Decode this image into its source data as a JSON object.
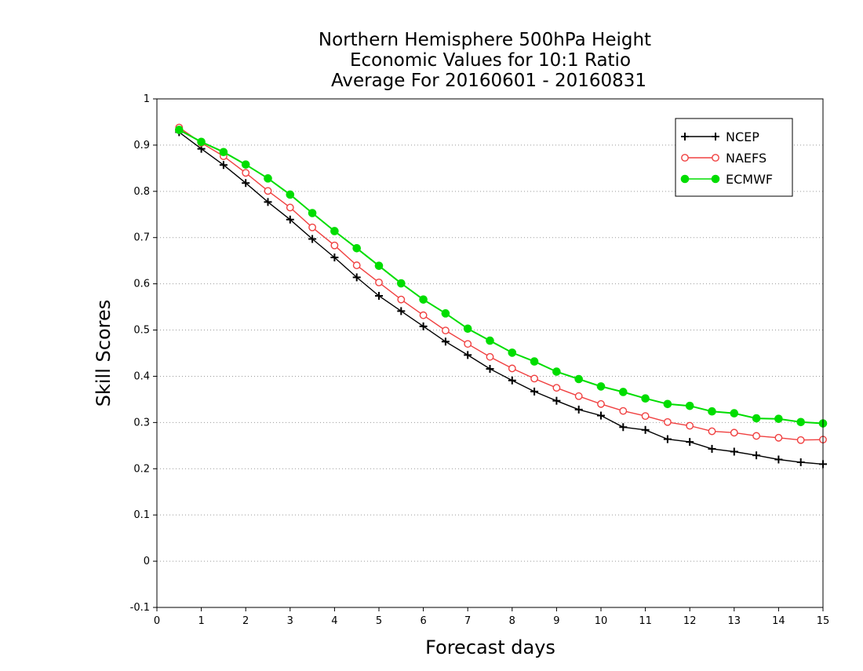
{
  "chart_data": {
    "type": "line",
    "title": [
      "Northern Hemisphere 500hPa Height",
      "Economic Values for 10:1 Ratio",
      "Average For 20160601 - 20160831"
    ],
    "xlabel": "Forecast days",
    "ylabel": "Skill Scores",
    "xlim": [
      0,
      15
    ],
    "ylim": [
      -0.1,
      1
    ],
    "xticks": [
      "0",
      "1",
      "2",
      "3",
      "4",
      "5",
      "6",
      "7",
      "8",
      "9",
      "10",
      "11",
      "12",
      "13",
      "14",
      "15"
    ],
    "yticks": [
      "-0.1",
      "0",
      "0.1",
      "0.2",
      "0.3",
      "0.4",
      "0.5",
      "0.6",
      "0.7",
      "0.8",
      "0.9",
      "1"
    ],
    "grid": "horizontal dotted",
    "legend_position": "top-right",
    "x": [
      0.5,
      1,
      1.5,
      2,
      2.5,
      3,
      3.5,
      4,
      4.5,
      5,
      5.5,
      6,
      6.5,
      7,
      7.5,
      8,
      8.5,
      9,
      9.5,
      10,
      10.5,
      11,
      11.5,
      12,
      12.5,
      13,
      13.5,
      14,
      14.5,
      15
    ],
    "series": [
      {
        "name": "NCEP",
        "color": "#000000",
        "marker": "plus",
        "values": [
          0.928,
          0.892,
          0.857,
          0.818,
          0.777,
          0.739,
          0.697,
          0.657,
          0.614,
          0.574,
          0.541,
          0.508,
          0.475,
          0.446,
          0.416,
          0.391,
          0.367,
          0.347,
          0.328,
          0.315,
          0.29,
          0.284,
          0.264,
          0.258,
          0.243,
          0.237,
          0.229,
          0.22,
          0.214,
          0.21
        ]
      },
      {
        "name": "NAEFS",
        "color": "#f04040",
        "marker": "open-circle",
        "values": [
          0.938,
          0.905,
          0.876,
          0.84,
          0.801,
          0.765,
          0.722,
          0.683,
          0.64,
          0.603,
          0.566,
          0.532,
          0.499,
          0.47,
          0.442,
          0.417,
          0.395,
          0.375,
          0.357,
          0.34,
          0.325,
          0.314,
          0.301,
          0.293,
          0.281,
          0.278,
          0.271,
          0.267,
          0.262,
          0.263
        ]
      },
      {
        "name": "ECMWF",
        "color": "#00dd00",
        "marker": "filled-circle",
        "values": [
          0.933,
          0.907,
          0.885,
          0.858,
          0.828,
          0.793,
          0.753,
          0.714,
          0.677,
          0.639,
          0.601,
          0.566,
          0.536,
          0.503,
          0.477,
          0.451,
          0.432,
          0.41,
          0.394,
          0.378,
          0.366,
          0.352,
          0.34,
          0.336,
          0.324,
          0.32,
          0.309,
          0.308,
          0.301,
          0.298
        ]
      }
    ]
  }
}
